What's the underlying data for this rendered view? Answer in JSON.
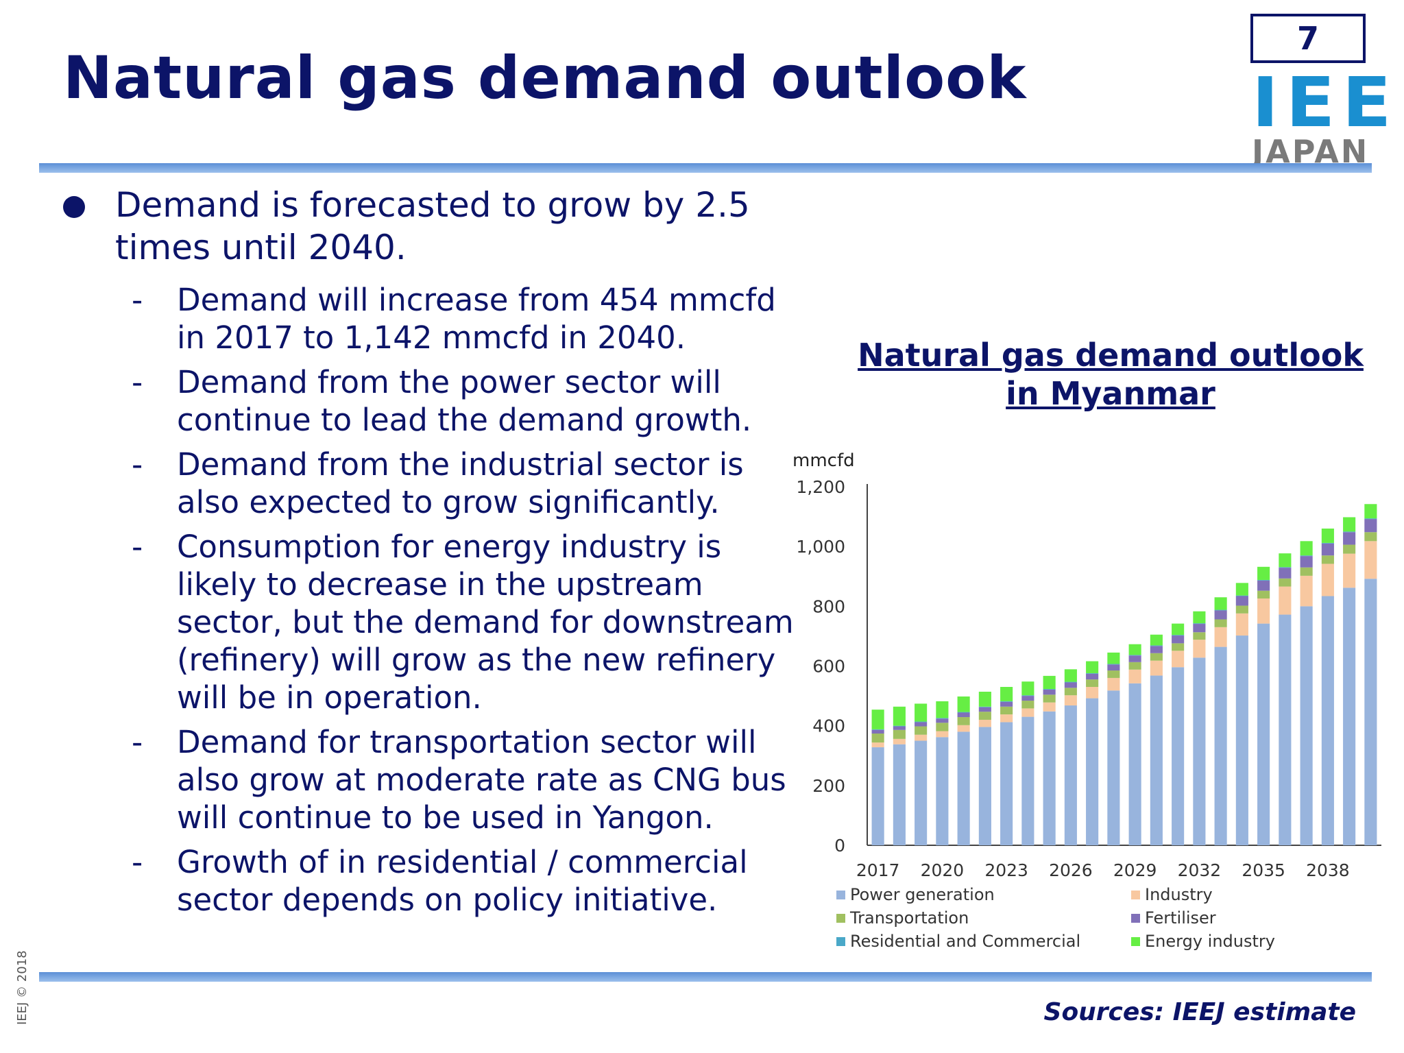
{
  "slide": {
    "title": "Natural gas demand outlook",
    "page_number": "7",
    "logo": {
      "main": "IEE",
      "sub": "JAPAN"
    },
    "sources": "Sources: IEEJ estimate",
    "copyright": "IEEJ © 2018"
  },
  "bullets": {
    "main": "Demand is forecasted to grow by 2.5 times until 2040.",
    "subs": [
      "Demand will increase from 454 mmcfd in 2017 to 1,142 mmcfd in 2040.",
      "Demand from the power sector will continue to lead the demand growth.",
      "Demand from the industrial sector is also expected to grow significantly.",
      "Consumption for energy industry is likely to decrease in the upstream sector, but the demand for downstream (refinery) will grow as the new refinery will be in operation.",
      "Demand for transportation sector will also grow at moderate rate as CNG bus will continue to be used in Yangon.",
      "Growth of in residential / commercial sector depends on policy initiative."
    ]
  },
  "chart_data": {
    "type": "bar",
    "stacked": true,
    "title": "Natural gas demand outlook in Myanmar",
    "ylabel": "mmcfd",
    "ylim": [
      0,
      1200
    ],
    "yticks": [
      0,
      200,
      400,
      600,
      800,
      1000,
      1200
    ],
    "ytick_labels": [
      "0",
      "200",
      "400",
      "600",
      "800",
      "1,000",
      "1,200"
    ],
    "categories": [
      "2017",
      "2018",
      "2019",
      "2020",
      "2021",
      "2022",
      "2023",
      "2024",
      "2025",
      "2026",
      "2027",
      "2028",
      "2029",
      "2030",
      "2031",
      "2032",
      "2033",
      "2034",
      "2035",
      "2036",
      "2037",
      "2038",
      "2039",
      "2040"
    ],
    "xtick_labels": [
      "2017",
      "2020",
      "2023",
      "2026",
      "2029",
      "2032",
      "2035",
      "2038"
    ],
    "grid": false,
    "legend_position": "bottom",
    "series": [
      {
        "name": "Power generation",
        "color": "#98b4dd",
        "values": [
          328,
          338,
          350,
          362,
          380,
          396,
          412,
          430,
          448,
          468,
          492,
          518,
          542,
          568,
          596,
          628,
          664,
          702,
          742,
          772,
          800,
          834,
          862,
          892
        ]
      },
      {
        "name": "Industry",
        "color": "#f8c8a0",
        "values": [
          16,
          18,
          20,
          20,
          22,
          24,
          26,
          28,
          30,
          34,
          38,
          42,
          46,
          50,
          55,
          60,
          66,
          74,
          84,
          94,
          102,
          108,
          114,
          126
        ]
      },
      {
        "name": "Transportation",
        "color": "#a0c060",
        "values": [
          30,
          30,
          28,
          28,
          27,
          27,
          26,
          26,
          26,
          25,
          25,
          25,
          25,
          25,
          25,
          25,
          26,
          26,
          26,
          27,
          28,
          28,
          30,
          30
        ]
      },
      {
        "name": "Fertiliser",
        "color": "#8070b8",
        "values": [
          12,
          12,
          14,
          14,
          15,
          15,
          16,
          16,
          17,
          18,
          19,
          20,
          22,
          24,
          26,
          28,
          30,
          32,
          34,
          36,
          38,
          40,
          42,
          44
        ]
      },
      {
        "name": "Residential and Commercial",
        "color": "#4aa8c8",
        "values": [
          2,
          2,
          2,
          2,
          2,
          2,
          2,
          2,
          2,
          2,
          2,
          2,
          2,
          2,
          2,
          2,
          2,
          2,
          2,
          2,
          2,
          2,
          2,
          2
        ]
      },
      {
        "name": "Energy industry",
        "color": "#66ee44",
        "values": [
          66,
          64,
          60,
          56,
          52,
          50,
          48,
          46,
          44,
          42,
          40,
          38,
          36,
          36,
          38,
          40,
          42,
          42,
          44,
          46,
          48,
          48,
          48,
          48
        ]
      }
    ]
  }
}
